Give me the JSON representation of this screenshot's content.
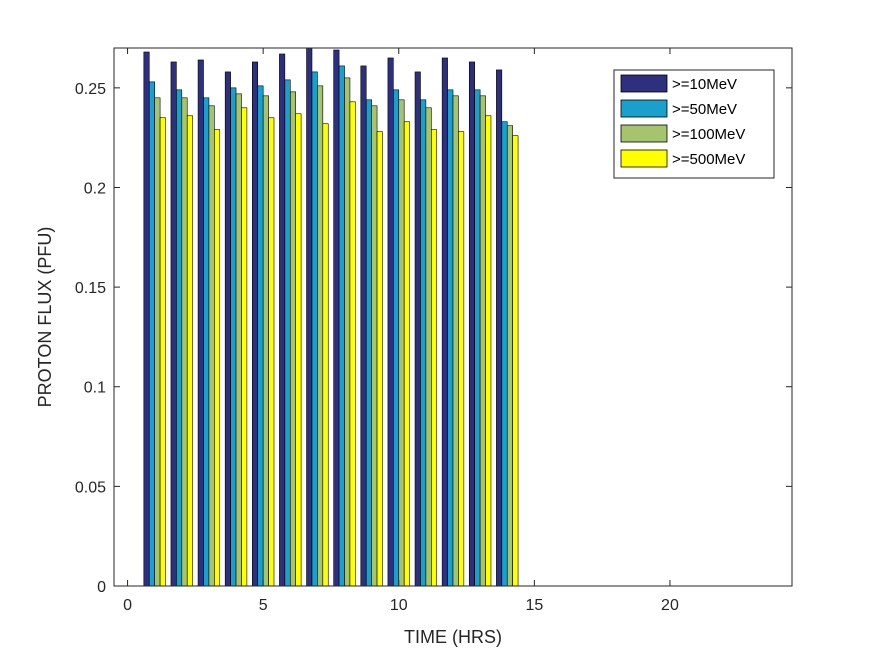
{
  "chart_data": {
    "type": "bar",
    "title": "",
    "xlabel": "TIME (HRS)",
    "ylabel": "PROTON  FLUX (PFU)",
    "xlim": [
      -0.5,
      24.5
    ],
    "ylim": [
      0,
      0.27
    ],
    "xticks": [
      0,
      5,
      10,
      15,
      20
    ],
    "xtick_labels": [
      "0",
      "5",
      "10",
      "15",
      "20"
    ],
    "yticks": [
      0,
      0.05,
      0.1,
      0.15,
      0.2,
      0.25
    ],
    "ytick_labels": [
      "0",
      "0.05",
      "0.1",
      "0.15",
      "0.2",
      "0.25"
    ],
    "grid": false,
    "legend_position": "top-right",
    "x": [
      1,
      2,
      3,
      4,
      5,
      6,
      7,
      8,
      9,
      10,
      11,
      12,
      13,
      14
    ],
    "series": [
      {
        "name": ">=10MeV",
        "color": "#2e2f7f",
        "values": [
          0.268,
          0.263,
          0.264,
          0.258,
          0.263,
          0.267,
          0.271,
          0.269,
          0.261,
          0.265,
          0.258,
          0.265,
          0.263,
          0.259
        ]
      },
      {
        "name": ">=50MeV",
        "color": "#1aa0cc",
        "values": [
          0.253,
          0.249,
          0.245,
          0.25,
          0.251,
          0.254,
          0.258,
          0.261,
          0.244,
          0.249,
          0.244,
          0.249,
          0.249,
          0.233
        ]
      },
      {
        "name": ">=100MeV",
        "color": "#a6c46e",
        "values": [
          0.245,
          0.245,
          0.241,
          0.247,
          0.246,
          0.248,
          0.251,
          0.255,
          0.241,
          0.244,
          0.24,
          0.246,
          0.246,
          0.231
        ]
      },
      {
        "name": ">=500MeV",
        "color": "#ffff00",
        "values": [
          0.235,
          0.236,
          0.229,
          0.24,
          0.235,
          0.237,
          0.232,
          0.243,
          0.228,
          0.233,
          0.229,
          0.228,
          0.236,
          0.226
        ]
      }
    ]
  }
}
